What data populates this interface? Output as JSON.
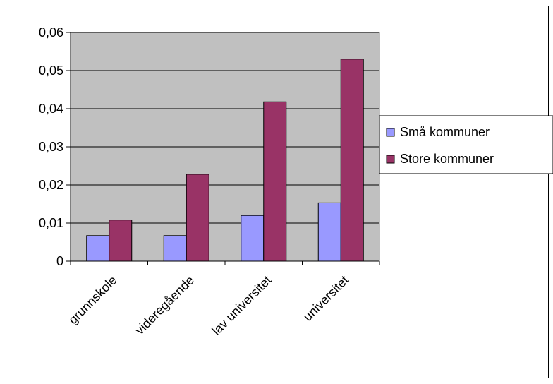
{
  "chart_data": {
    "type": "bar",
    "title": "",
    "xlabel": "",
    "ylabel": "",
    "categories": [
      "grunnskole",
      "videregående",
      "lav universitet",
      "universitet"
    ],
    "series": [
      {
        "name": "Små kommuner",
        "values": [
          0.0067,
          0.0067,
          0.012,
          0.0153
        ]
      },
      {
        "name": "Store kommuner",
        "values": [
          0.0108,
          0.0228,
          0.0418,
          0.053
        ]
      }
    ],
    "ylim": [
      0,
      0.06
    ],
    "yticks": [
      "0",
      "0,01",
      "0,02",
      "0,03",
      "0,04",
      "0,05",
      "0,06"
    ],
    "grid": true,
    "legend_position": "right",
    "colors": {
      "plot_background": "#c0c0c0",
      "series": [
        "#9999ff",
        "#993366"
      ],
      "grid": "#000000"
    }
  }
}
